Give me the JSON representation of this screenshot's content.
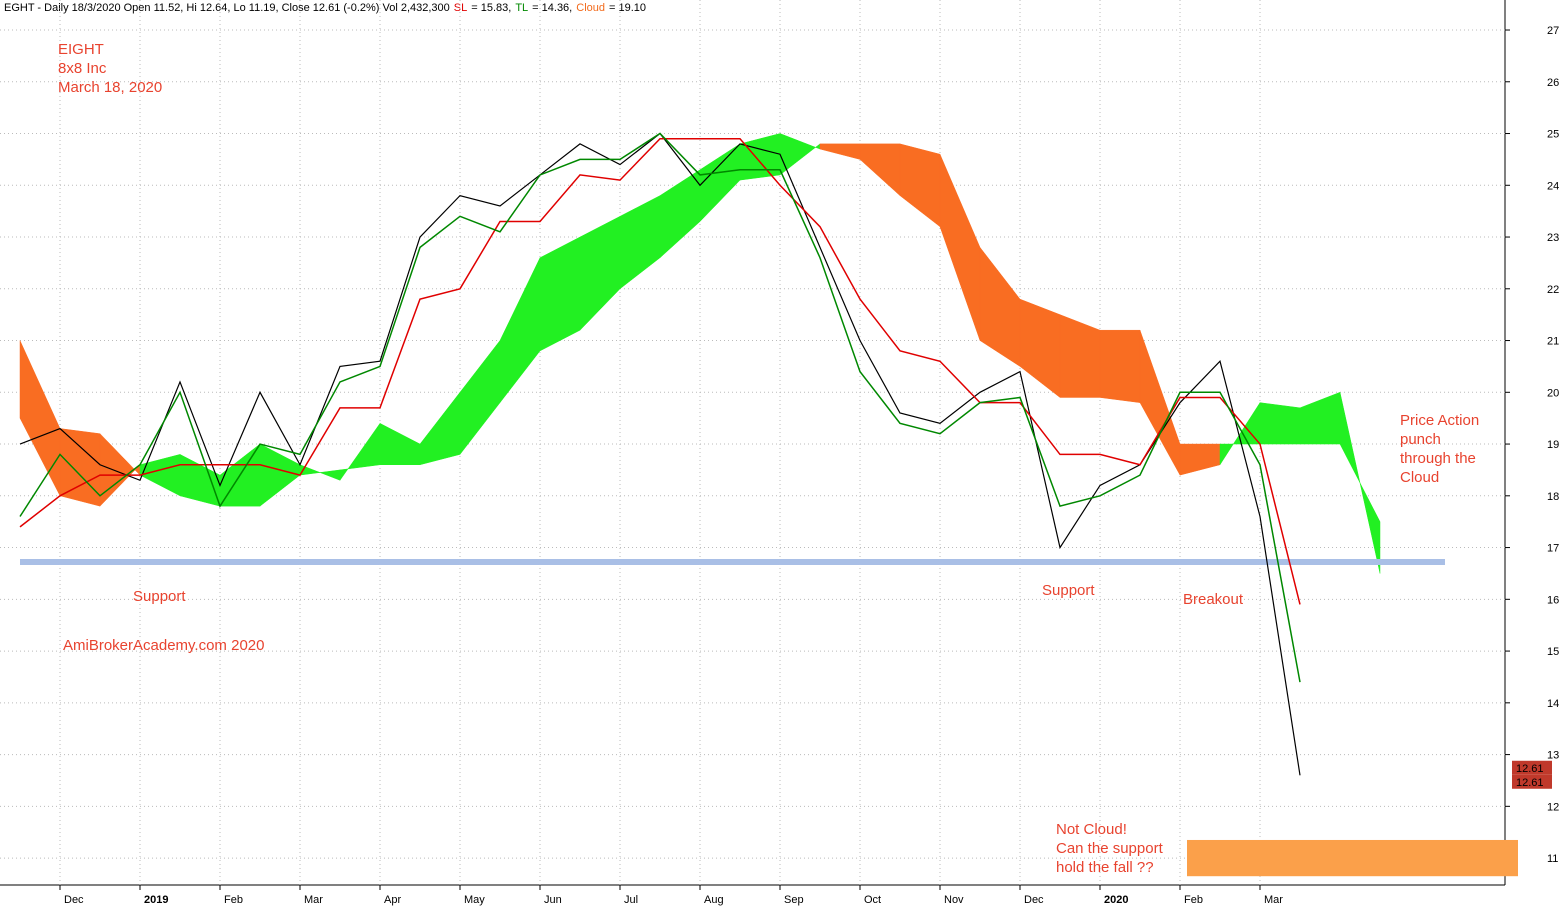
{
  "chart_data": {
    "type": "ichimoku",
    "header": [
      {
        "text": "EGHT - Daily 18/3/2020 Open 11.52, Hi 12.64, Lo 11.19, Close 12.61 (-0.2%) Vol 2,432,300",
        "color": "#000000"
      },
      {
        "text": "SL",
        "color": "#e00000"
      },
      {
        "text": "= 15.83,",
        "color": "#000000"
      },
      {
        "text": "TL",
        "color": "#008800"
      },
      {
        "text": "= 14.36,",
        "color": "#000000"
      },
      {
        "text": "Cloud",
        "color": "#f26a1b"
      },
      {
        "text": "= 19.10",
        "color": "#000000"
      }
    ],
    "annotations": [
      "EIGHT",
      "8x8 Inc",
      "March 18, 2020",
      "Support",
      "AmiBrokerAcademy.com   2020",
      "Support",
      "Breakout",
      "Price Action",
      "punch",
      "through the",
      "Cloud",
      "Not Cloud!",
      "Can the support",
      "hold the fall ??"
    ],
    "categories": [
      null,
      "Dec",
      null,
      "2019",
      null,
      "Feb",
      null,
      "Mar",
      null,
      "Apr",
      null,
      "May",
      null,
      "Jun",
      null,
      "Jul",
      null,
      "Aug",
      null,
      "Sep",
      null,
      "Oct",
      null,
      "Nov",
      null,
      "Dec",
      null,
      "2020",
      null,
      "Feb",
      null,
      "Mar",
      null,
      null,
      null
    ],
    "series": [
      {
        "name": "Close",
        "color": "#000000",
        "values": [
          19.0,
          19.3,
          18.6,
          18.3,
          20.2,
          18.2,
          20.0,
          18.6,
          20.5,
          20.6,
          23.0,
          23.8,
          23.6,
          24.2,
          24.8,
          24.4,
          25.0,
          24.0,
          24.8,
          24.6,
          22.8,
          21.0,
          19.6,
          19.4,
          20.0,
          20.4,
          17.0,
          18.2,
          18.6,
          19.8,
          20.6,
          17.6,
          12.6,
          null,
          null
        ]
      },
      {
        "name": "SL",
        "color": "#e00000",
        "values": [
          17.4,
          18.0,
          18.4,
          18.4,
          18.6,
          18.6,
          18.6,
          18.4,
          19.7,
          19.7,
          21.8,
          22.0,
          23.3,
          23.3,
          24.2,
          24.1,
          24.9,
          24.9,
          24.9,
          24.0,
          23.2,
          21.8,
          20.8,
          20.6,
          19.8,
          19.8,
          18.8,
          18.8,
          18.6,
          19.9,
          19.9,
          19.0,
          15.9,
          null,
          null
        ]
      },
      {
        "name": "TL",
        "color": "#008800",
        "values": [
          17.6,
          18.8,
          18.0,
          18.6,
          20.0,
          17.8,
          19.0,
          18.8,
          20.2,
          20.5,
          22.8,
          23.4,
          23.1,
          24.2,
          24.5,
          24.5,
          25.0,
          24.2,
          24.3,
          24.3,
          22.6,
          20.4,
          19.4,
          19.2,
          19.8,
          19.9,
          17.8,
          18.0,
          18.4,
          20.0,
          20.0,
          18.6,
          14.4,
          null,
          null
        ]
      }
    ],
    "cloud": {
      "bull_color": "#22f022",
      "bear_color": "#f96d22",
      "span_a": [
        19.5,
        18.0,
        17.8,
        18.6,
        18.8,
        18.4,
        19.0,
        18.6,
        18.3,
        19.4,
        19.0,
        20.0,
        21.0,
        22.6,
        23.0,
        23.4,
        23.8,
        24.3,
        24.8,
        25.0,
        24.7,
        24.5,
        23.8,
        23.2,
        21.0,
        20.5,
        19.9,
        19.9,
        19.8,
        18.4,
        18.6,
        19.8,
        19.7,
        20.0,
        16.5
      ],
      "span_b": [
        21.0,
        19.3,
        19.2,
        18.4,
        18.0,
        17.8,
        17.8,
        18.4,
        18.5,
        18.6,
        18.6,
        18.8,
        19.8,
        20.8,
        21.2,
        22.0,
        22.6,
        23.3,
        24.1,
        24.2,
        24.8,
        24.8,
        24.8,
        24.6,
        22.8,
        21.8,
        21.5,
        21.2,
        21.2,
        19.0,
        19.0,
        19.0,
        19.0,
        19.0,
        17.5
      ]
    },
    "support_level": 16.72,
    "support_color": "#a9bfe6",
    "support_zone": [
      10.65,
      11.35
    ],
    "zone_color": "#fba04a",
    "last_price_tags": [
      12.61,
      12.61
    ],
    "ylim": [
      10.48,
      27.58
    ],
    "yticks": [
      11,
      12,
      13,
      14,
      15,
      16,
      17,
      18,
      19,
      20,
      21,
      22,
      23,
      24,
      25,
      26,
      27
    ],
    "grid": true
  }
}
